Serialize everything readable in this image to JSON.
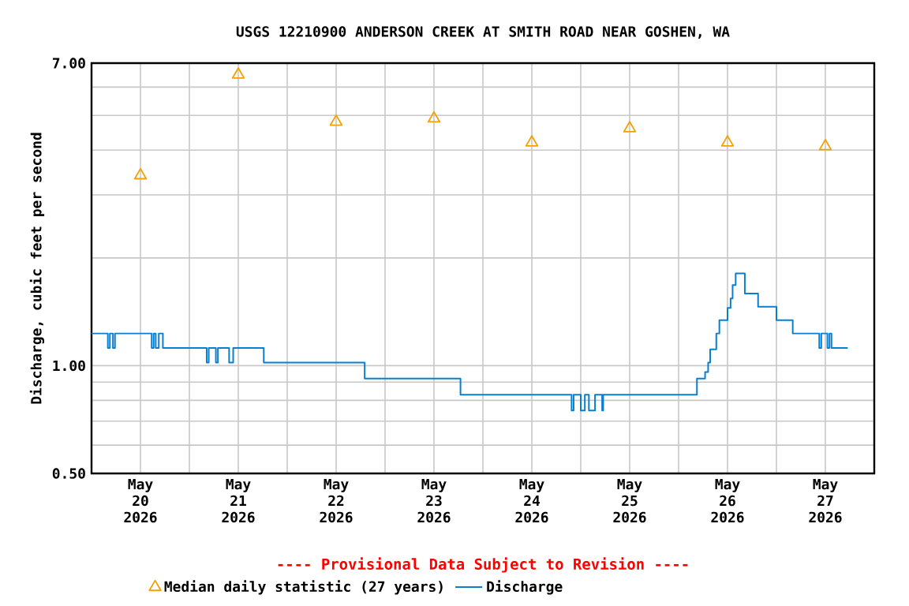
{
  "chart_data": {
    "type": "step",
    "title": "USGS 12210900 ANDERSON CREEK AT SMITH ROAD NEAR GOSHEN, WA",
    "ylabel": "Discharge, cubic feet per second",
    "annotations": [
      "---- Provisional Data Subject to Revision ----"
    ],
    "log": "y",
    "grid": true,
    "legend": "bottom",
    "xlim": [
      "2026-05-20T00:00",
      "2026-05-28T00:00"
    ],
    "xticks": [
      {
        "value": "2026-05-20T12:00",
        "label": "May 20 2026"
      },
      {
        "value": "2026-05-21T00:00",
        "label": null
      },
      {
        "value": "2026-05-21T12:00",
        "label": "May 21 2026"
      },
      {
        "value": "2026-05-22T00:00",
        "label": null
      },
      {
        "value": "2026-05-22T12:00",
        "label": "May 22 2026"
      },
      {
        "value": "2026-05-23T00:00",
        "label": null
      },
      {
        "value": "2026-05-23T12:00",
        "label": "May 23 2026"
      },
      {
        "value": "2026-05-24T00:00",
        "label": null
      },
      {
        "value": "2026-05-24T12:00",
        "label": "May 24 2026"
      },
      {
        "value": "2026-05-25T00:00",
        "label": null
      },
      {
        "value": "2026-05-25T12:00",
        "label": "May 25 2026"
      },
      {
        "value": "2026-05-26T00:00",
        "label": null
      },
      {
        "value": "2026-05-26T12:00",
        "label": "May 26 2026"
      },
      {
        "value": "2026-05-27T00:00",
        "label": null
      },
      {
        "value": "2026-05-27T12:00",
        "label": "May 27 2026"
      }
    ],
    "ylim": [
      0.5,
      7.0
    ],
    "yticks": [
      {
        "value": 0.5,
        "label": "0.50"
      },
      {
        "value": 0.6,
        "label": null
      },
      {
        "value": 0.7,
        "label": null
      },
      {
        "value": 0.8,
        "label": null
      },
      {
        "value": 0.9,
        "label": null
      },
      {
        "value": 1.0,
        "label": "1.00"
      },
      {
        "value": 2,
        "label": null
      },
      {
        "value": 3,
        "label": null
      },
      {
        "value": 4,
        "label": null
      },
      {
        "value": 5,
        "label": null
      },
      {
        "value": 6,
        "label": null
      },
      {
        "value": 7.0,
        "label": "7.00"
      }
    ],
    "series": [
      {
        "name": "Median daily statistic (27 years)",
        "type": "scatter",
        "marker": "triangle",
        "color": "#f5a000",
        "x": [
          "2026-05-20T12:00",
          "2026-05-21T12:00",
          "2026-05-22T12:00",
          "2026-05-23T12:00",
          "2026-05-24T12:00",
          "2026-05-25T12:00",
          "2026-05-26T12:00",
          "2026-05-27T12:00"
        ],
        "values": [
          3.4,
          6.5,
          4.8,
          4.9,
          4.2,
          4.6,
          4.2,
          4.1
        ]
      },
      {
        "name": "Discharge",
        "type": "step",
        "marker": "none",
        "color": "#0a7fd0",
        "x": [
          "2026-05-20T00:00",
          "2026-05-20T04:00",
          "2026-05-20T04:30",
          "2026-05-20T05:15",
          "2026-05-20T05:45",
          "2026-05-20T14:45",
          "2026-05-20T15:15",
          "2026-05-20T15:45",
          "2026-05-20T16:30",
          "2026-05-20T17:30",
          "2026-05-21T04:15",
          "2026-05-21T04:45",
          "2026-05-21T06:30",
          "2026-05-21T07:00",
          "2026-05-21T09:45",
          "2026-05-21T10:45",
          "2026-05-21T18:15",
          "2026-05-22T19:00",
          "2026-05-23T18:30",
          "2026-05-24T21:45",
          "2026-05-24T22:15",
          "2026-05-25T00:00",
          "2026-05-25T01:00",
          "2026-05-25T02:00",
          "2026-05-25T03:30",
          "2026-05-25T05:15",
          "2026-05-25T05:30",
          "2026-05-26T04:30",
          "2026-05-26T06:30",
          "2026-05-26T07:15",
          "2026-05-26T07:45",
          "2026-05-26T09:15",
          "2026-05-26T10:00",
          "2026-05-26T12:00",
          "2026-05-26T12:45",
          "2026-05-26T13:15",
          "2026-05-26T14:00",
          "2026-05-26T16:15",
          "2026-05-26T19:30",
          "2026-05-27T00:00",
          "2026-05-27T04:00",
          "2026-05-27T10:30",
          "2026-05-27T11:00",
          "2026-05-27T12:30",
          "2026-05-27T13:00",
          "2026-05-27T13:30",
          "2026-05-27T17:30"
        ],
        "values": [
          1.23,
          1.12,
          1.23,
          1.12,
          1.23,
          1.12,
          1.23,
          1.12,
          1.23,
          1.12,
          1.02,
          1.12,
          1.02,
          1.12,
          1.02,
          1.12,
          1.02,
          0.92,
          0.83,
          0.75,
          0.83,
          0.75,
          0.83,
          0.75,
          0.83,
          0.75,
          0.83,
          0.92,
          0.96,
          1.02,
          1.11,
          1.23,
          1.34,
          1.45,
          1.54,
          1.68,
          1.81,
          1.59,
          1.46,
          1.34,
          1.23,
          1.12,
          1.23,
          1.12,
          1.23,
          1.12,
          1.12
        ]
      }
    ]
  }
}
